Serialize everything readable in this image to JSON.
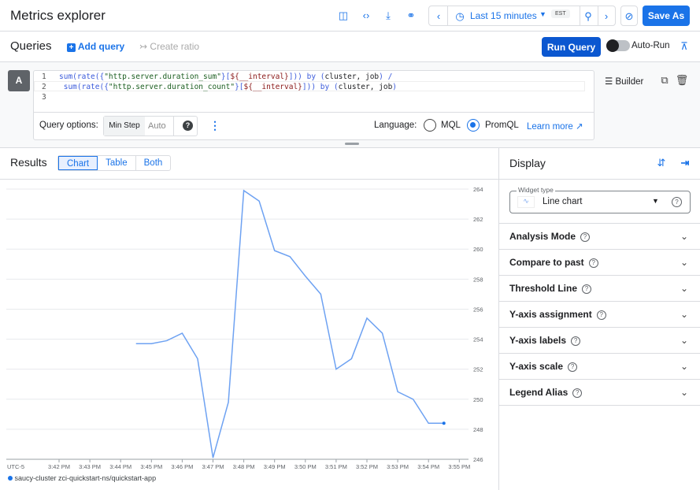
{
  "header": {
    "title": "Metrics explorer",
    "icons": [
      "feedback-icon",
      "code-icon",
      "download-icon",
      "link-icon"
    ],
    "time_range": "Last 15 minutes",
    "timezone": "EST",
    "save_as": "Save As"
  },
  "queries": {
    "title": "Queries",
    "add_query": "Add query",
    "create_ratio": "Create ratio",
    "run_query": "Run Query",
    "auto_run": "Auto-Run"
  },
  "query_a": {
    "label": "A",
    "line_numbers": [
      "1",
      "2",
      "3"
    ],
    "builder": "Builder",
    "line1": [
      [
        "kw",
        "sum(rate({"
      ],
      [
        "str",
        "\"http.server.duration_sum\""
      ],
      [
        "kw",
        "}["
      ],
      [
        "var",
        "${__interval}"
      ],
      [
        "kw",
        "])) by ("
      ],
      [
        "",
        "cluster, job"
      ],
      [
        "kw",
        ") /"
      ]
    ],
    "line2": [
      [
        "kw",
        " sum(rate({"
      ],
      [
        "str",
        "\"http.server.duration_count\""
      ],
      [
        "kw",
        "}["
      ],
      [
        "var",
        "${__interval}"
      ],
      [
        "kw",
        "])) by ("
      ],
      [
        "",
        "cluster, job"
      ],
      [
        "kw",
        ")"
      ]
    ],
    "options_label": "Query options:",
    "min_step": "Min Step",
    "min_step_placeholder": "Auto",
    "language_label": "Language:",
    "languages": [
      "MQL",
      "PromQL"
    ],
    "selected_language": "PromQL",
    "learn_more": "Learn more"
  },
  "results": {
    "title": "Results",
    "tabs": [
      "Chart",
      "Table",
      "Both"
    ],
    "active_tab": "Chart"
  },
  "display": {
    "title": "Display",
    "widget_type_label": "Widget type",
    "widget_type": "Line chart",
    "sections": [
      "Analysis Mode",
      "Compare to past",
      "Threshold Line",
      "Y-axis assignment",
      "Y-axis labels",
      "Y-axis scale",
      "Legend Alias"
    ]
  },
  "chart_data": {
    "type": "line",
    "timezone_label": "UTC-5",
    "x_ticks": [
      "3:42 PM",
      "3:43 PM",
      "3:44 PM",
      "3:45 PM",
      "3:46 PM",
      "3:47 PM",
      "3:48 PM",
      "3:49 PM",
      "3:50 PM",
      "3:51 PM",
      "3:52 PM",
      "3:53 PM",
      "3:54 PM",
      "3:55 PM"
    ],
    "y_ticks": [
      246,
      248,
      250,
      252,
      254,
      256,
      258,
      260,
      262,
      264
    ],
    "ylim": [
      246,
      264
    ],
    "y_axis_side": "right",
    "grid": true,
    "series": [
      {
        "name": "saucy-cluster zci-quickstart-ns/quickstart-app",
        "color": "#1a73e8",
        "x": [
          "3:44:30 PM",
          "3:45:00 PM",
          "3:45:30 PM",
          "3:46:00 PM",
          "3:46:30 PM",
          "3:47:00 PM",
          "3:47:30 PM",
          "3:48:00 PM",
          "3:48:30 PM",
          "3:49:00 PM",
          "3:49:30 PM",
          "3:50:00 PM",
          "3:50:30 PM",
          "3:51:00 PM",
          "3:51:30 PM",
          "3:52:00 PM",
          "3:52:30 PM",
          "3:53:00 PM",
          "3:53:30 PM",
          "3:54:00 PM",
          "3:54:30 PM"
        ],
        "values": [
          253.7,
          253.7,
          253.9,
          254.4,
          252.7,
          246.1,
          249.8,
          263.9,
          263.2,
          259.9,
          259.5,
          258.2,
          257.0,
          252.0,
          252.7,
          255.4,
          254.4,
          250.5,
          250.0,
          248.4,
          248.4
        ]
      }
    ],
    "legend_position": "bottom-left"
  }
}
